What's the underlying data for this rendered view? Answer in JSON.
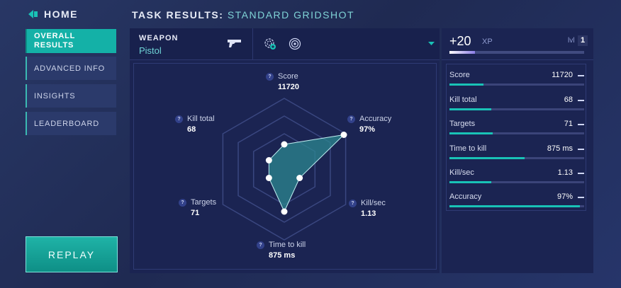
{
  "header": {
    "home_label": "HOME",
    "title_prefix": "TASK RESULTS:",
    "title_task": "STANDARD GRIDSHOT"
  },
  "nav": [
    {
      "label": "OVERALL RESULTS",
      "active": true
    },
    {
      "label": "ADVANCED INFO",
      "active": false
    },
    {
      "label": "INSIGHTS",
      "active": false
    },
    {
      "label": "LEADERBOARD",
      "active": false
    }
  ],
  "replay_label": "REPLAY",
  "weapon": {
    "caption": "WEAPON",
    "name": "Pistol"
  },
  "radar": {
    "help_glyph": "?",
    "axes": [
      {
        "label": "Score",
        "value": "11720",
        "level": 0.35
      },
      {
        "label": "Accuracy",
        "value": "97%",
        "level": 0.97
      },
      {
        "label": "Kill/sec",
        "value": "1.13",
        "level": 0.25
      },
      {
        "label": "Time to kill",
        "value": "875 ms",
        "level": 0.6
      },
      {
        "label": "Targets",
        "value": "71",
        "level": 0.25
      },
      {
        "label": "Kill total",
        "value": "68",
        "level": 0.25
      }
    ]
  },
  "xp": {
    "gain": "+20",
    "unit": "XP",
    "progress": 0.19,
    "level_label": "lvl",
    "level": "1"
  },
  "stats": [
    {
      "name": "Score",
      "value": "11720",
      "fill": 0.25
    },
    {
      "name": "Kill total",
      "value": "68",
      "fill": 0.31
    },
    {
      "name": "Targets",
      "value": "71",
      "fill": 0.32
    },
    {
      "name": "Time to kill",
      "value": "875 ms",
      "fill": 0.56
    },
    {
      "name": "Kill/sec",
      "value": "1.13",
      "fill": 0.31
    },
    {
      "name": "Accuracy",
      "value": "97%",
      "fill": 0.97
    }
  ],
  "colors": {
    "accent": "#14b1a7",
    "radar_fill": "#2c8790",
    "background": "#222d5a"
  }
}
